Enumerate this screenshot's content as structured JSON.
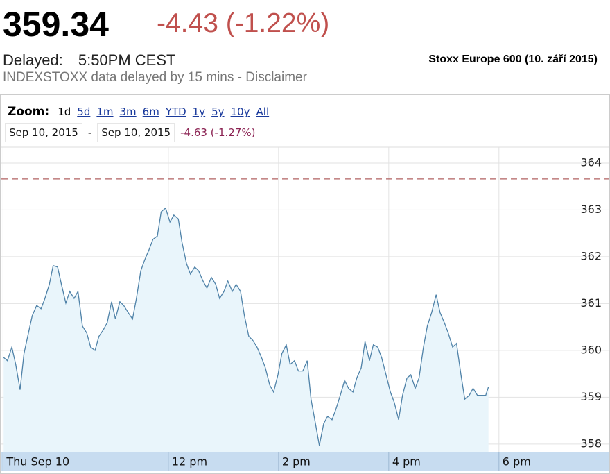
{
  "header": {
    "price": "359.34",
    "change": "-4.43 (-1.22%)",
    "delayed_label": "Delayed:",
    "delayed_time": "5:50PM CEST",
    "source": "INDEXSTOXX data delayed by 15 mins - Disclaimer",
    "title": "Stoxx Europe 600 (10. září 2015)"
  },
  "zoom": {
    "label": "Zoom:",
    "options": [
      "1d",
      "5d",
      "1m",
      "3m",
      "6m",
      "YTD",
      "1y",
      "5y",
      "10y",
      "All"
    ]
  },
  "range": {
    "from": "Sep 10, 2015",
    "separator": "-",
    "to": "Sep 10, 2015",
    "change": "-4.63 (-1.27%)"
  },
  "chart_data": {
    "type": "area",
    "color": "#4f82a8",
    "fill": "#e9f5fb",
    "grid": true,
    "reference_line": 363.66,
    "reference_color": "#b06060",
    "xlim": [
      8.97,
      19.99
    ],
    "xticks": [
      {
        "value": 9,
        "label": "Thu Sep 10"
      },
      {
        "value": 12,
        "label": "12 pm"
      },
      {
        "value": 14,
        "label": "2 pm"
      },
      {
        "value": 16,
        "label": "4 pm"
      },
      {
        "value": 18,
        "label": "6 pm"
      }
    ],
    "ylim": [
      357.82,
      364.34
    ],
    "yticks": [
      358,
      359,
      360,
      361,
      362,
      363,
      364
    ],
    "x": [
      9.01,
      9.08,
      9.16,
      9.23,
      9.31,
      9.38,
      9.46,
      9.53,
      9.61,
      9.69,
      9.76,
      9.84,
      9.91,
      9.99,
      10.06,
      10.14,
      10.21,
      10.29,
      10.36,
      10.44,
      10.52,
      10.59,
      10.67,
      10.74,
      10.82,
      10.89,
      10.97,
      11.04,
      11.12,
      11.19,
      11.27,
      11.35,
      11.42,
      11.5,
      11.57,
      11.65,
      11.72,
      11.8,
      11.87,
      11.95,
      12.03,
      12.1,
      12.18,
      12.25,
      12.33,
      12.4,
      12.48,
      12.55,
      12.63,
      12.7,
      12.78,
      12.86,
      12.93,
      13.01,
      13.08,
      13.16,
      13.23,
      13.31,
      13.38,
      13.46,
      13.53,
      13.61,
      13.69,
      13.76,
      13.84,
      13.91,
      13.99,
      14.06,
      14.14,
      14.21,
      14.29,
      14.36,
      14.44,
      14.52,
      14.59,
      14.67,
      14.74,
      14.82,
      14.89,
      14.97,
      15.04,
      15.12,
      15.2,
      15.27,
      15.35,
      15.42,
      15.5,
      15.57,
      15.65,
      15.72,
      15.8,
      15.87,
      15.95,
      16.03,
      16.1,
      16.18,
      16.25,
      16.33,
      16.4,
      16.48,
      16.55,
      16.63,
      16.7,
      16.78,
      16.86,
      16.93,
      17.01,
      17.08,
      17.16,
      17.23,
      17.31,
      17.38,
      17.46,
      17.53,
      17.61,
      17.69,
      17.76,
      17.81
    ],
    "values": [
      359.85,
      359.78,
      360.07,
      359.7,
      359.16,
      359.93,
      360.37,
      360.74,
      360.96,
      360.89,
      361.11,
      361.41,
      361.81,
      361.78,
      361.41,
      361.01,
      361.26,
      361.11,
      361.26,
      360.52,
      360.37,
      360.07,
      360.0,
      360.3,
      360.44,
      360.59,
      361.04,
      360.67,
      361.04,
      360.96,
      360.81,
      360.67,
      361.11,
      361.7,
      361.93,
      362.15,
      362.37,
      362.44,
      362.96,
      363.04,
      362.74,
      362.89,
      362.81,
      362.3,
      361.85,
      361.63,
      361.78,
      361.7,
      361.48,
      361.33,
      361.56,
      361.41,
      361.11,
      361.26,
      361.48,
      361.26,
      361.41,
      361.26,
      360.74,
      360.3,
      360.22,
      360.07,
      359.85,
      359.63,
      359.26,
      359.11,
      359.48,
      359.93,
      360.12,
      359.7,
      359.78,
      359.56,
      359.56,
      359.78,
      358.96,
      358.44,
      357.97,
      358.44,
      358.59,
      358.52,
      358.74,
      359.04,
      359.36,
      359.19,
      359.11,
      359.41,
      359.63,
      360.19,
      359.78,
      360.12,
      360.07,
      359.85,
      359.48,
      359.11,
      358.89,
      358.52,
      359.04,
      359.41,
      359.48,
      359.19,
      359.41,
      360.07,
      360.52,
      360.81,
      361.19,
      360.81,
      360.59,
      360.37,
      360.07,
      360.15,
      359.48,
      358.96,
      359.04,
      359.19,
      359.04,
      359.04,
      359.04,
      359.22
    ]
  }
}
